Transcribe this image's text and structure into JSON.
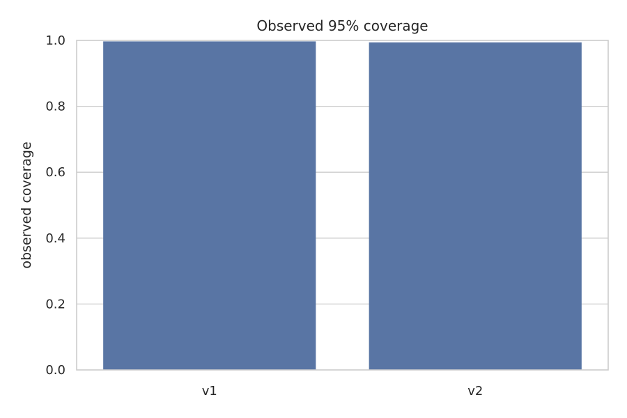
{
  "chart_data": {
    "type": "bar",
    "title": "Observed 95% coverage",
    "xlabel": "",
    "ylabel": "observed coverage",
    "categories": [
      "v1",
      "v2"
    ],
    "values": [
      0.997,
      0.994
    ],
    "ylim": [
      0,
      1.0
    ],
    "yticks": [
      "0.0",
      "0.2",
      "0.4",
      "0.6",
      "0.8",
      "1.0"
    ],
    "grid": "horizontal",
    "bar_color": "#5975a4"
  }
}
